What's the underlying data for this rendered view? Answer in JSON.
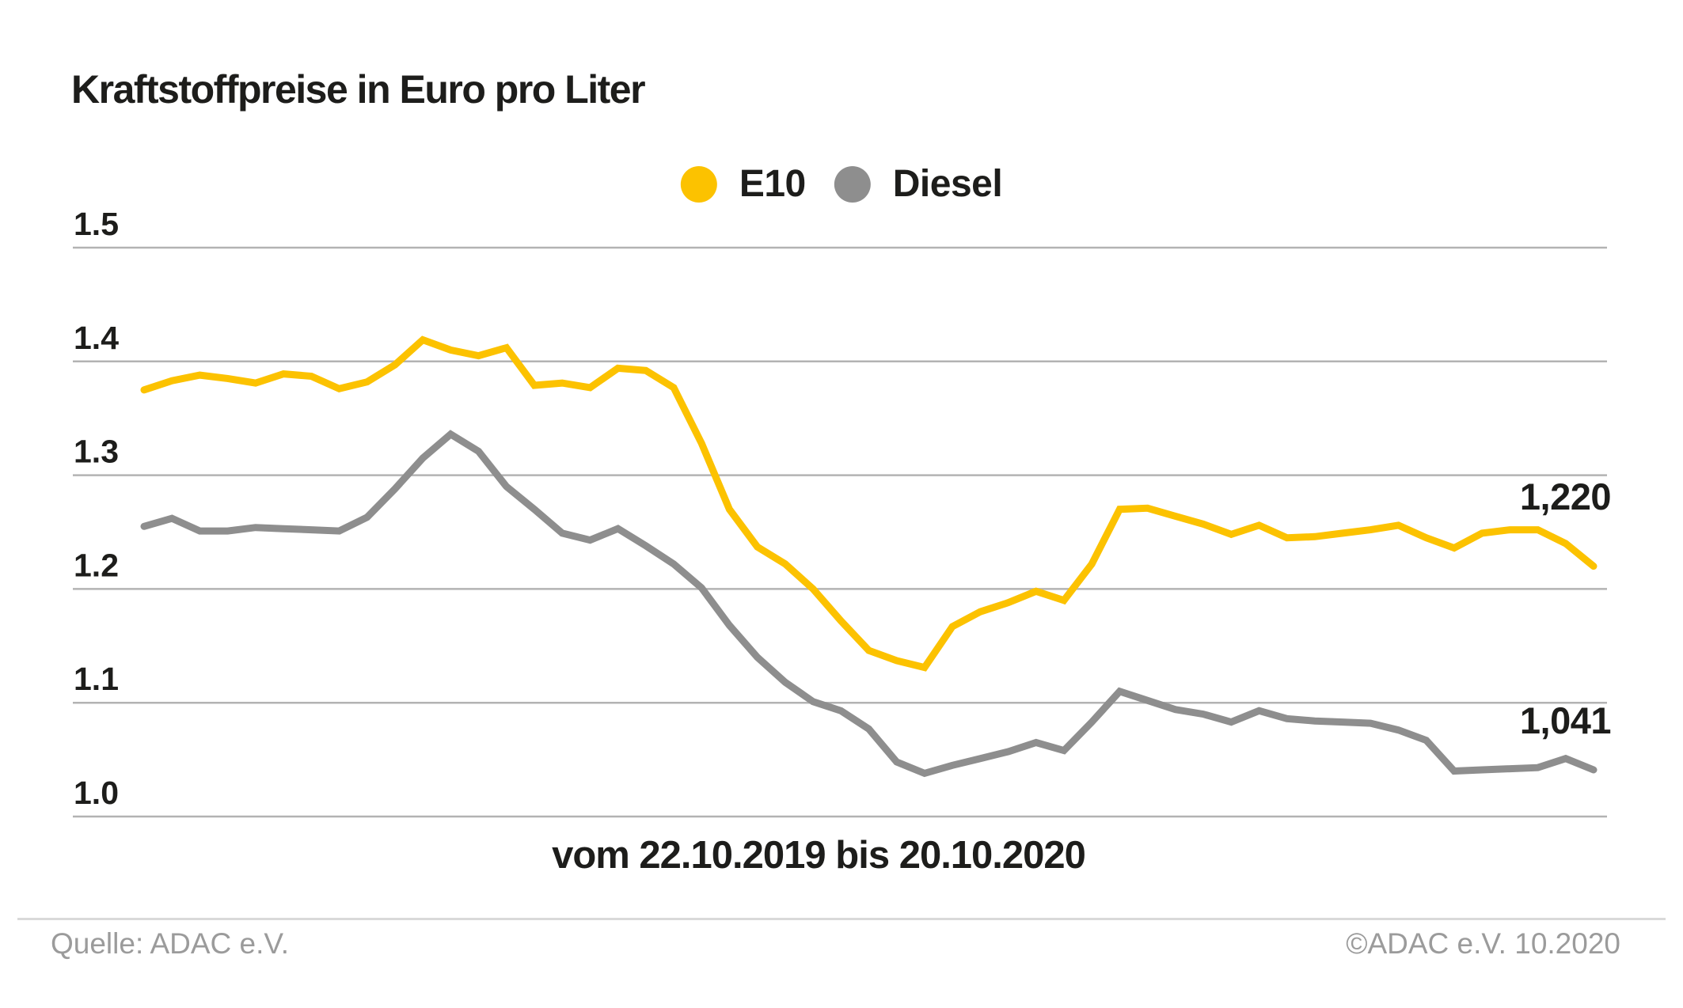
{
  "title": "Kraftstoffpreise in Euro pro Liter",
  "legend": [
    {
      "label": "E10",
      "color": "#FCC200"
    },
    {
      "label": "Diesel",
      "color": "#8E8E8E"
    }
  ],
  "xlabel": "vom 22.10.2019 bis 20.10.2020",
  "end_labels": {
    "e10": "1,220",
    "diesel": "1,041"
  },
  "footer": {
    "source": "Quelle: ADAC e.V.",
    "copyright": "©ADAC e.V. 10.2020"
  },
  "colors": {
    "e10": "#FCC200",
    "diesel": "#8E8E8E",
    "grid": "#B3B3B3",
    "text": "#1D1D1B",
    "muted": "#9B9B9B",
    "divider": "#D9D9D9"
  },
  "chart_data": {
    "type": "line",
    "title": "Kraftstoffpreise in Euro pro Liter",
    "xlabel": "vom 22.10.2019 bis 20.10.2020",
    "x_unit": "week",
    "x_start": "22.10.2019",
    "x_end": "20.10.2020",
    "n_points": 53,
    "ylim": [
      0.95,
      1.55
    ],
    "yticks": [
      1.5,
      1.4,
      1.3,
      1.2,
      1.1,
      1.0
    ],
    "grid": true,
    "legend_position": "top-center",
    "end_value_labels": {
      "E10": "1,220",
      "Diesel": "1,041"
    },
    "series": [
      {
        "name": "E10",
        "color": "#FCC200",
        "values": [
          1.375,
          1.383,
          1.388,
          1.385,
          1.381,
          1.389,
          1.387,
          1.376,
          1.382,
          1.397,
          1.419,
          1.41,
          1.405,
          1.412,
          1.379,
          1.381,
          1.377,
          1.394,
          1.392,
          1.377,
          1.328,
          1.27,
          1.237,
          1.222,
          1.2,
          1.172,
          1.146,
          1.137,
          1.131,
          1.167,
          1.18,
          1.188,
          1.198,
          1.19,
          1.222,
          1.27,
          1.271,
          1.264,
          1.257,
          1.248,
          1.256,
          1.245,
          1.246,
          1.249,
          1.252,
          1.256,
          1.245,
          1.236,
          1.249,
          1.252,
          1.252,
          1.24,
          1.22
        ]
      },
      {
        "name": "Diesel",
        "color": "#8E8E8E",
        "values": [
          1.255,
          1.262,
          1.251,
          1.251,
          1.254,
          1.253,
          1.252,
          1.251,
          1.263,
          1.288,
          1.315,
          1.336,
          1.321,
          1.29,
          1.27,
          1.249,
          1.243,
          1.253,
          1.238,
          1.222,
          1.201,
          1.168,
          1.14,
          1.118,
          1.101,
          1.093,
          1.077,
          1.048,
          1.038,
          1.045,
          1.051,
          1.057,
          1.065,
          1.058,
          1.083,
          1.11,
          1.102,
          1.094,
          1.09,
          1.083,
          1.093,
          1.086,
          1.084,
          1.083,
          1.082,
          1.076,
          1.067,
          1.04,
          1.041,
          1.042,
          1.043,
          1.051,
          1.041
        ]
      }
    ]
  }
}
